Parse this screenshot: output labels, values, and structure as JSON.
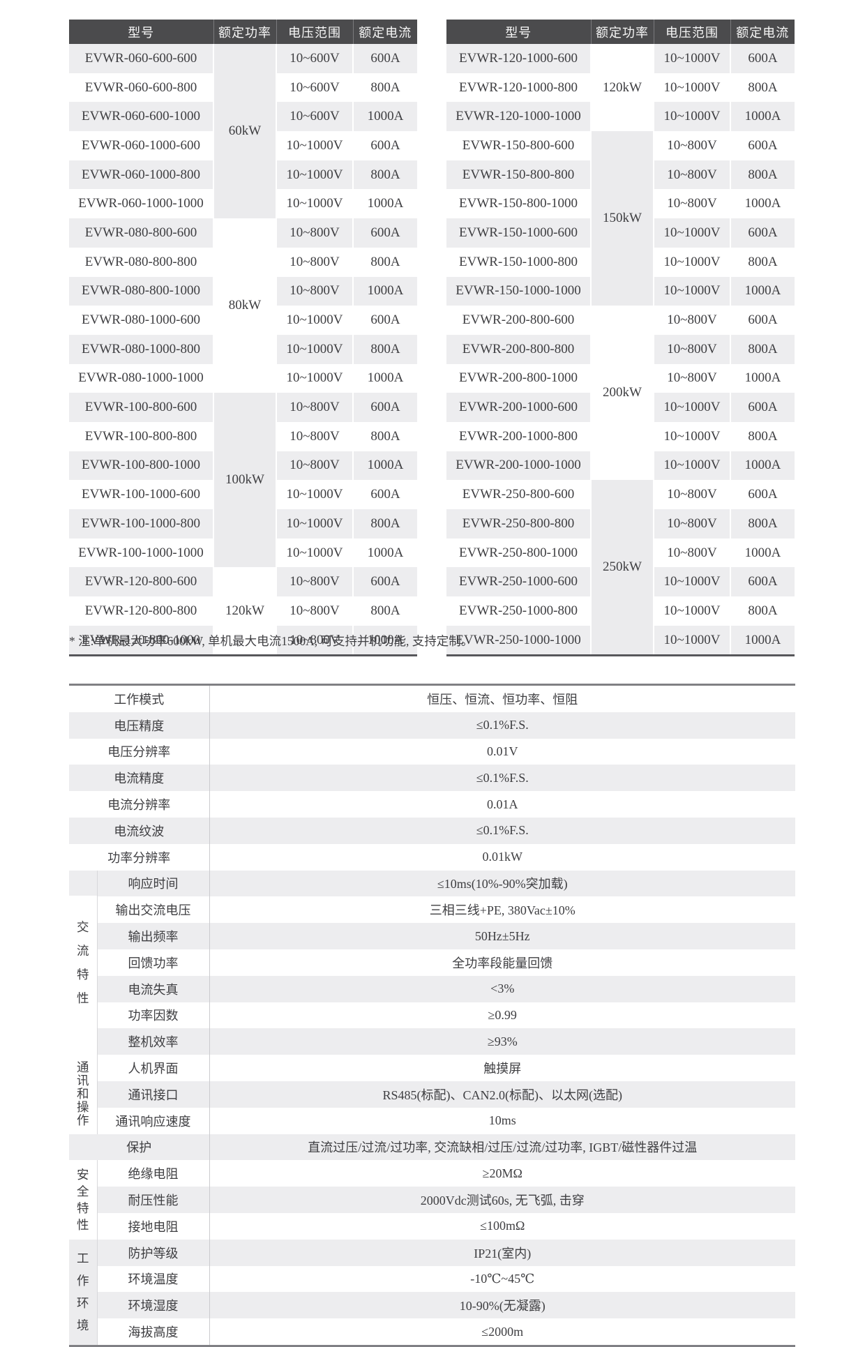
{
  "colors": {
    "header_bg": "#4b4b4d",
    "header_text": "#f7f7f7",
    "row_stripe": "#ededef",
    "power_cell_gray": "#ebebed",
    "group_cell_gray": "#ececee",
    "table_bottom_border": "#57575a",
    "spec_border": "#808084",
    "body_text": "#3e3e41"
  },
  "model_tables": [
    {
      "id": "left",
      "headers": [
        "型号",
        "额定功率",
        "电压范围",
        "额定电流"
      ],
      "groups": [
        {
          "power": "60kW",
          "shade": "gray",
          "rows": [
            [
              "EVWR-060-600-600",
              "10~600V",
              "600A"
            ],
            [
              "EVWR-060-600-800",
              "10~600V",
              "800A"
            ],
            [
              "EVWR-060-600-1000",
              "10~600V",
              "1000A"
            ],
            [
              "EVWR-060-1000-600",
              "10~1000V",
              "600A"
            ],
            [
              "EVWR-060-1000-800",
              "10~1000V",
              "800A"
            ],
            [
              "EVWR-060-1000-1000",
              "10~1000V",
              "1000A"
            ]
          ]
        },
        {
          "power": "80kW",
          "shade": "white",
          "rows": [
            [
              "EVWR-080-800-600",
              "10~800V",
              "600A"
            ],
            [
              "EVWR-080-800-800",
              "10~800V",
              "800A"
            ],
            [
              "EVWR-080-800-1000",
              "10~800V",
              "1000A"
            ],
            [
              "EVWR-080-1000-600",
              "10~1000V",
              "600A"
            ],
            [
              "EVWR-080-1000-800",
              "10~1000V",
              "800A"
            ],
            [
              "EVWR-080-1000-1000",
              "10~1000V",
              "1000A"
            ]
          ]
        },
        {
          "power": "100kW",
          "shade": "gray",
          "rows": [
            [
              "EVWR-100-800-600",
              "10~800V",
              "600A"
            ],
            [
              "EVWR-100-800-800",
              "10~800V",
              "800A"
            ],
            [
              "EVWR-100-800-1000",
              "10~800V",
              "1000A"
            ],
            [
              "EVWR-100-1000-600",
              "10~1000V",
              "600A"
            ],
            [
              "EVWR-100-1000-800",
              "10~1000V",
              "800A"
            ],
            [
              "EVWR-100-1000-1000",
              "10~1000V",
              "1000A"
            ]
          ]
        },
        {
          "power": "120kW",
          "shade": "white",
          "rows": [
            [
              "EVWR-120-800-600",
              "10~800V",
              "600A"
            ],
            [
              "EVWR-120-800-800",
              "10~800V",
              "800A"
            ],
            [
              "EVWR-120-800-1000",
              "10~800V",
              "1000A"
            ]
          ]
        }
      ]
    },
    {
      "id": "right",
      "headers": [
        "型号",
        "额定功率",
        "电压范围",
        "额定电流"
      ],
      "groups": [
        {
          "power": "120kW",
          "shade": "white",
          "rows": [
            [
              "EVWR-120-1000-600",
              "10~1000V",
              "600A"
            ],
            [
              "EVWR-120-1000-800",
              "10~1000V",
              "800A"
            ],
            [
              "EVWR-120-1000-1000",
              "10~1000V",
              "1000A"
            ]
          ]
        },
        {
          "power": "150kW",
          "shade": "gray",
          "rows": [
            [
              "EVWR-150-800-600",
              "10~800V",
              "600A"
            ],
            [
              "EVWR-150-800-800",
              "10~800V",
              "800A"
            ],
            [
              "EVWR-150-800-1000",
              "10~800V",
              "1000A"
            ],
            [
              "EVWR-150-1000-600",
              "10~1000V",
              "600A"
            ],
            [
              "EVWR-150-1000-800",
              "10~1000V",
              "800A"
            ],
            [
              "EVWR-150-1000-1000",
              "10~1000V",
              "1000A"
            ]
          ]
        },
        {
          "power": "200kW",
          "shade": "white",
          "rows": [
            [
              "EVWR-200-800-600",
              "10~800V",
              "600A"
            ],
            [
              "EVWR-200-800-800",
              "10~800V",
              "800A"
            ],
            [
              "EVWR-200-800-1000",
              "10~800V",
              "1000A"
            ],
            [
              "EVWR-200-1000-600",
              "10~1000V",
              "600A"
            ],
            [
              "EVWR-200-1000-800",
              "10~1000V",
              "800A"
            ],
            [
              "EVWR-200-1000-1000",
              "10~1000V",
              "1000A"
            ]
          ]
        },
        {
          "power": "250kW",
          "shade": "gray",
          "rows": [
            [
              "EVWR-250-800-600",
              "10~800V",
              "600A"
            ],
            [
              "EVWR-250-800-800",
              "10~800V",
              "800A"
            ],
            [
              "EVWR-250-800-1000",
              "10~800V",
              "1000A"
            ],
            [
              "EVWR-250-1000-600",
              "10~1000V",
              "600A"
            ],
            [
              "EVWR-250-1000-800",
              "10~1000V",
              "800A"
            ],
            [
              "EVWR-250-1000-1000",
              "10~1000V",
              "1000A"
            ]
          ]
        }
      ]
    }
  ],
  "note": "* 注:单机最大功率600kW, 单机最大电流1500A, 可支持并机功能, 支持定制。",
  "spec_sections": [
    {
      "group": null,
      "items": [
        {
          "label": "工作模式",
          "value": "恒压、恒流、恒功率、恒阻"
        },
        {
          "label": "电压精度",
          "value": "≤0.1%F.S."
        },
        {
          "label": "电压分辨率",
          "value": "0.01V"
        },
        {
          "label": "电流精度",
          "value": "≤0.1%F.S."
        },
        {
          "label": "电流分辨率",
          "value": "0.01A"
        },
        {
          "label": "电流纹波",
          "value": "≤0.1%F.S."
        },
        {
          "label": "功率分辨率",
          "value": "0.01kW"
        }
      ]
    },
    {
      "group": "交流特性",
      "shade": "white",
      "top_stripe": true,
      "items": [
        {
          "label": "响应时间",
          "value": "≤10ms(10%-90%突加载)"
        },
        {
          "label": "输出交流电压",
          "value": "三相三线+PE, 380Vac±10%"
        },
        {
          "label": "输出频率",
          "value": "50Hz±5Hz"
        },
        {
          "label": "回馈功率",
          "value": "全功率段能量回馈"
        },
        {
          "label": "电流失真",
          "value": "<3%"
        },
        {
          "label": "功率因数",
          "value": "≥0.99"
        },
        {
          "label": "整机效率",
          "value": "≥93%"
        }
      ]
    },
    {
      "group": "通讯和操作",
      "shade": "white",
      "items": [
        {
          "label": "人机界面",
          "value": "触摸屏"
        },
        {
          "label": "通讯接口",
          "value": "RS485(标配)、CAN2.0(标配)、以太网(选配)"
        },
        {
          "label": "通讯响应速度",
          "value": "10ms"
        }
      ]
    },
    {
      "group": null,
      "items": [
        {
          "label": "保护",
          "value": "直流过压/过流/过功率, 交流缺相/过压/过流/过功率, IGBT/磁性器件过温"
        }
      ]
    },
    {
      "group": "安全特性",
      "shade": "white",
      "items": [
        {
          "label": "绝缘电阻",
          "value": "≥20MΩ"
        },
        {
          "label": "耐压性能",
          "value": "2000Vdc测试60s, 无飞弧, 击穿"
        },
        {
          "label": "接地电阻",
          "value": "≤100mΩ"
        }
      ]
    },
    {
      "group": "工作环境",
      "shade": "gray",
      "items": [
        {
          "label": "防护等级",
          "value": "IP21(室内)"
        },
        {
          "label": "环境温度",
          "value": "-10℃~45℃"
        },
        {
          "label": "环境湿度",
          "value": "10-90%(无凝露)"
        },
        {
          "label": "海拔高度",
          "value": "≤2000m"
        }
      ]
    }
  ]
}
